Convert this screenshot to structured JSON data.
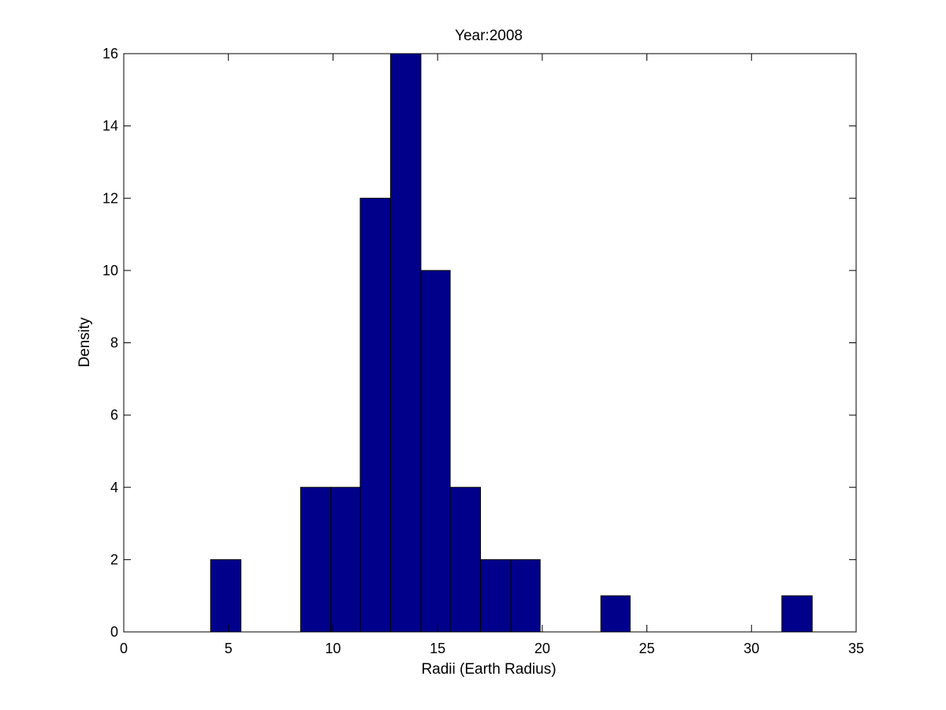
{
  "chart_data": {
    "type": "bar",
    "title": "Year:2008",
    "xlabel": "Radii (Earth Radius)",
    "ylabel": "Density",
    "xlim": [
      0,
      35
    ],
    "ylim": [
      0,
      16
    ],
    "xticks": [
      0,
      5,
      10,
      15,
      20,
      25,
      30,
      35
    ],
    "yticks": [
      0,
      2,
      4,
      6,
      8,
      10,
      12,
      14,
      16
    ],
    "grid": false,
    "bar_color": "#00008B",
    "bins": [
      {
        "start": 4.15,
        "end": 5.6,
        "value": 2
      },
      {
        "start": 8.45,
        "end": 9.9,
        "value": 4
      },
      {
        "start": 9.9,
        "end": 11.3,
        "value": 4
      },
      {
        "start": 11.3,
        "end": 12.75,
        "value": 12
      },
      {
        "start": 12.75,
        "end": 14.2,
        "value": 16
      },
      {
        "start": 14.2,
        "end": 15.6,
        "value": 10
      },
      {
        "start": 15.6,
        "end": 17.05,
        "value": 4
      },
      {
        "start": 17.05,
        "end": 18.5,
        "value": 2
      },
      {
        "start": 18.5,
        "end": 19.9,
        "value": 2
      },
      {
        "start": 22.8,
        "end": 24.2,
        "value": 1
      },
      {
        "start": 31.45,
        "end": 32.9,
        "value": 1
      }
    ]
  }
}
